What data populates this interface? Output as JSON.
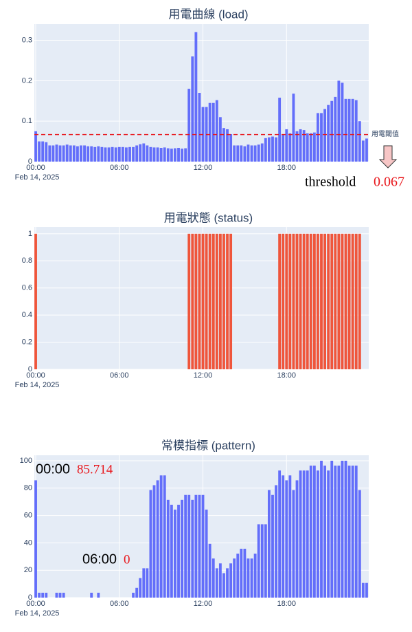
{
  "chart_data": [
    {
      "type": "bar",
      "title": "用電曲線 (load)",
      "date_label": "Feb 14, 2025",
      "color": "#636efa",
      "x": [
        0,
        0.25,
        0.5,
        0.75,
        1,
        1.25,
        1.5,
        1.75,
        2,
        2.25,
        2.5,
        2.75,
        3,
        3.25,
        3.5,
        3.75,
        4,
        4.25,
        4.5,
        4.75,
        5,
        5.25,
        5.5,
        5.75,
        6,
        6.25,
        6.5,
        6.75,
        7,
        7.25,
        7.5,
        7.75,
        8,
        8.25,
        8.5,
        8.75,
        9,
        9.25,
        9.5,
        9.75,
        10,
        10.25,
        10.5,
        10.75,
        11,
        11.25,
        11.5,
        11.75,
        12,
        12.25,
        12.5,
        12.75,
        13,
        13.25,
        13.5,
        13.75,
        14,
        14.25,
        14.5,
        14.75,
        15,
        15.25,
        15.5,
        15.75,
        16,
        16.25,
        16.5,
        16.75,
        17,
        17.25,
        17.5,
        17.75,
        18,
        18.25,
        18.5,
        18.75,
        19,
        19.25,
        19.5,
        19.75,
        20,
        20.25,
        20.5,
        20.75,
        21,
        21.25,
        21.5,
        21.75,
        22,
        22.25,
        22.5,
        22.75,
        23,
        23.25,
        23.5,
        23.75
      ],
      "values": [
        0.075,
        0.05,
        0.05,
        0.048,
        0.04,
        0.04,
        0.042,
        0.04,
        0.04,
        0.042,
        0.04,
        0.04,
        0.038,
        0.04,
        0.04,
        0.038,
        0.038,
        0.036,
        0.038,
        0.036,
        0.035,
        0.035,
        0.036,
        0.035,
        0.036,
        0.036,
        0.035,
        0.036,
        0.036,
        0.04,
        0.043,
        0.045,
        0.04,
        0.036,
        0.035,
        0.035,
        0.034,
        0.035,
        0.033,
        0.032,
        0.033,
        0.034,
        0.032,
        0.033,
        0.18,
        0.26,
        0.32,
        0.17,
        0.135,
        0.135,
        0.145,
        0.145,
        0.152,
        0.11,
        0.083,
        0.08,
        0.068,
        0.04,
        0.04,
        0.04,
        0.038,
        0.042,
        0.04,
        0.04,
        0.042,
        0.045,
        0.058,
        0.06,
        0.062,
        0.06,
        0.158,
        0.068,
        0.08,
        0.07,
        0.168,
        0.075,
        0.08,
        0.078,
        0.07,
        0.07,
        0.072,
        0.12,
        0.12,
        0.13,
        0.14,
        0.15,
        0.16,
        0.2,
        0.195,
        0.155,
        0.155,
        0.155,
        0.152,
        0.1,
        0.052,
        0.057
      ],
      "xlim": [
        -0.1,
        23.9
      ],
      "xticks": [
        {
          "value": 0,
          "label": "00:00"
        },
        {
          "value": 6,
          "label": "06:00"
        },
        {
          "value": 12,
          "label": "12:00"
        },
        {
          "value": 18,
          "label": "18:00"
        }
      ],
      "ylim": [
        0,
        0.34
      ],
      "yticks": [
        0,
        0.1,
        0.2,
        0.3
      ],
      "grid": true,
      "threshold": 0.067,
      "threshold_color": "#e8161b",
      "threshold_name": "用電閾值",
      "annotation": "threshold"
    },
    {
      "type": "bar",
      "title": "用電狀態 (status)",
      "date_label": "Feb 14, 2025",
      "color": "#ef553b",
      "x": [
        0,
        0.25,
        0.5,
        0.75,
        1,
        1.25,
        1.5,
        1.75,
        2,
        2.25,
        2.5,
        2.75,
        3,
        3.25,
        3.5,
        3.75,
        4,
        4.25,
        4.5,
        4.75,
        5,
        5.25,
        5.5,
        5.75,
        6,
        6.25,
        6.5,
        6.75,
        7,
        7.25,
        7.5,
        7.75,
        8,
        8.25,
        8.5,
        8.75,
        9,
        9.25,
        9.5,
        9.75,
        10,
        10.25,
        10.5,
        10.75,
        11,
        11.25,
        11.5,
        11.75,
        12,
        12.25,
        12.5,
        12.75,
        13,
        13.25,
        13.5,
        13.75,
        14,
        14.25,
        14.5,
        14.75,
        15,
        15.25,
        15.5,
        15.75,
        16,
        16.25,
        16.5,
        16.75,
        17,
        17.25,
        17.5,
        17.75,
        18,
        18.25,
        18.5,
        18.75,
        19,
        19.25,
        19.5,
        19.75,
        20,
        20.25,
        20.5,
        20.75,
        21,
        21.25,
        21.5,
        21.75,
        22,
        22.25,
        22.5,
        22.75,
        23,
        23.25,
        23.5,
        23.75
      ],
      "values": [
        1,
        0,
        0,
        0,
        0,
        0,
        0,
        0,
        0,
        0,
        0,
        0,
        0,
        0,
        0,
        0,
        0,
        0,
        0,
        0,
        0,
        0,
        0,
        0,
        0,
        0,
        0,
        0,
        0,
        0,
        0,
        0,
        0,
        0,
        0,
        0,
        0,
        0,
        0,
        0,
        0,
        0,
        0,
        0,
        1,
        1,
        1,
        1,
        1,
        1,
        1,
        1,
        1,
        1,
        1,
        1,
        1,
        0,
        0,
        0,
        0,
        0,
        0,
        0,
        0,
        0,
        0,
        0,
        0,
        0,
        1,
        1,
        1,
        1,
        1,
        1,
        1,
        1,
        1,
        1,
        1,
        1,
        1,
        1,
        1,
        1,
        1,
        1,
        1,
        1,
        1,
        1,
        1,
        1,
        0,
        0
      ],
      "xlim": [
        -0.1,
        23.9
      ],
      "xticks": [
        {
          "value": 0,
          "label": "00:00"
        },
        {
          "value": 6,
          "label": "06:00"
        },
        {
          "value": 12,
          "label": "12:00"
        },
        {
          "value": 18,
          "label": "18:00"
        }
      ],
      "ylim": [
        0,
        1.05
      ],
      "yticks": [
        0,
        0.2,
        0.4,
        0.6,
        0.8,
        1
      ],
      "grid": true
    },
    {
      "type": "bar",
      "title": "常模指標 (pattern)",
      "date_label": "Feb 14, 2025",
      "color": "#636efa",
      "x": [
        0,
        0.25,
        0.5,
        0.75,
        1,
        1.25,
        1.5,
        1.75,
        2,
        2.25,
        2.5,
        2.75,
        3,
        3.25,
        3.5,
        3.75,
        4,
        4.25,
        4.5,
        4.75,
        5,
        5.25,
        5.5,
        5.75,
        6,
        6.25,
        6.5,
        6.75,
        7,
        7.25,
        7.5,
        7.75,
        8,
        8.25,
        8.5,
        8.75,
        9,
        9.25,
        9.5,
        9.75,
        10,
        10.25,
        10.5,
        10.75,
        11,
        11.25,
        11.5,
        11.75,
        12,
        12.25,
        12.5,
        12.75,
        13,
        13.25,
        13.5,
        13.75,
        14,
        14.25,
        14.5,
        14.75,
        15,
        15.25,
        15.5,
        15.75,
        16,
        16.25,
        16.5,
        16.75,
        17,
        17.25,
        17.5,
        17.75,
        18,
        18.25,
        18.5,
        18.75,
        19,
        19.25,
        19.5,
        19.75,
        20,
        20.25,
        20.5,
        20.75,
        21,
        21.25,
        21.5,
        21.75,
        22,
        22.25,
        22.5,
        22.75,
        23,
        23.25,
        23.5,
        23.75
      ],
      "values": [
        85.714,
        3.571,
        3.571,
        3.571,
        0,
        0,
        3.571,
        3.571,
        3.571,
        0,
        0,
        0,
        0,
        0,
        0,
        0,
        3.571,
        0,
        3.571,
        0,
        0,
        0,
        0,
        0,
        0,
        0,
        0,
        0,
        3.571,
        7.143,
        14.286,
        21.429,
        21.429,
        78.571,
        82.143,
        85.714,
        89.286,
        89.286,
        71.429,
        67.857,
        64.286,
        67.857,
        71.429,
        75,
        75,
        71.429,
        75,
        75,
        75,
        64.286,
        39.286,
        28.571,
        21.429,
        25,
        17.857,
        21.429,
        25,
        28.571,
        32.143,
        35.714,
        35.714,
        28.571,
        28.571,
        32.143,
        53.571,
        53.571,
        53.571,
        78.571,
        75,
        82.143,
        92.857,
        89.286,
        85.714,
        89.286,
        78.571,
        85.714,
        92.857,
        92.857,
        92.857,
        96.429,
        96.429,
        92.857,
        100,
        96.429,
        92.857,
        100,
        96.429,
        96.429,
        100,
        100,
        96.429,
        96.429,
        96.429,
        78.571,
        10.714,
        10.714
      ],
      "xlim": [
        -0.1,
        23.9
      ],
      "xticks": [
        {
          "value": 0,
          "label": "00:00"
        },
        {
          "value": 6,
          "label": "06:00"
        },
        {
          "value": 12,
          "label": "12:00"
        },
        {
          "value": 18,
          "label": "18:00"
        }
      ],
      "ylim": [
        0,
        104
      ],
      "yticks": [
        0,
        20,
        40,
        60,
        80,
        100
      ],
      "grid": true,
      "annotation_color": "#e8161b"
    }
  ]
}
